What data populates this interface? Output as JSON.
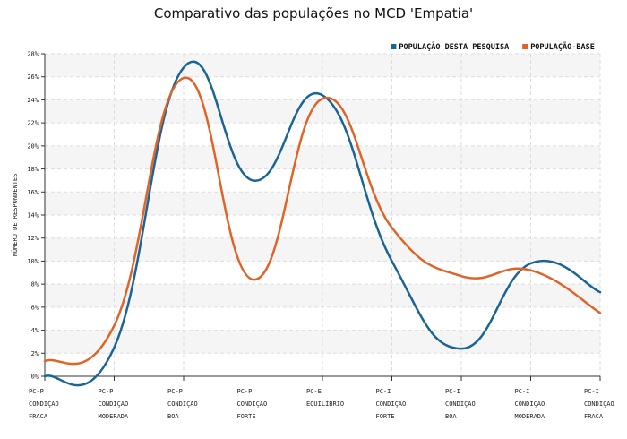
{
  "chart_data": {
    "type": "line",
    "title": "Comparativo das populações no MCD 'Empatia'",
    "xlabel": "",
    "ylabel": "NÚMERO DE RESPONDENTES",
    "ylim": [
      0,
      28
    ],
    "yticks": [
      "0%",
      "2%",
      "4%",
      "6%",
      "8%",
      "10%",
      "12%",
      "14%",
      "16%",
      "18%",
      "20%",
      "22%",
      "24%",
      "26%",
      "28%"
    ],
    "grid": true,
    "legend_position": "top-right",
    "categories": [
      [
        "PC-P",
        "CONDIÇÃO",
        "FRACA"
      ],
      [
        "PC-P",
        "CONDIÇÃO",
        "MODERADA"
      ],
      [
        "PC-P",
        "CONDIÇÃO",
        "BOA"
      ],
      [
        "PC-P",
        "CONDIÇÃO",
        "FORTE"
      ],
      [
        "PC-E",
        "EQUILÍBRIO"
      ],
      [
        "PC-I",
        "CONDIÇÃO",
        "FORTE"
      ],
      [
        "PC-I",
        "CONDIÇÃO",
        "BOA"
      ],
      [
        "PC-I",
        "CONDIÇÃO",
        "MODERADA"
      ],
      [
        "PC-I",
        "CONDIÇÃO",
        "FRACA"
      ]
    ],
    "series": [
      {
        "name": "POPULAÇÃO DESTA PESQUISA",
        "color": "#1a6496",
        "values": [
          0.0,
          2.5,
          26.8,
          17.0,
          24.4,
          10.0,
          2.4,
          9.8,
          7.3
        ]
      },
      {
        "name": "POPULAÇÃO-BASE",
        "color": "#e06428",
        "values": [
          1.3,
          4.4,
          25.9,
          8.4,
          24.1,
          12.9,
          8.7,
          9.2,
          5.5
        ]
      }
    ]
  }
}
